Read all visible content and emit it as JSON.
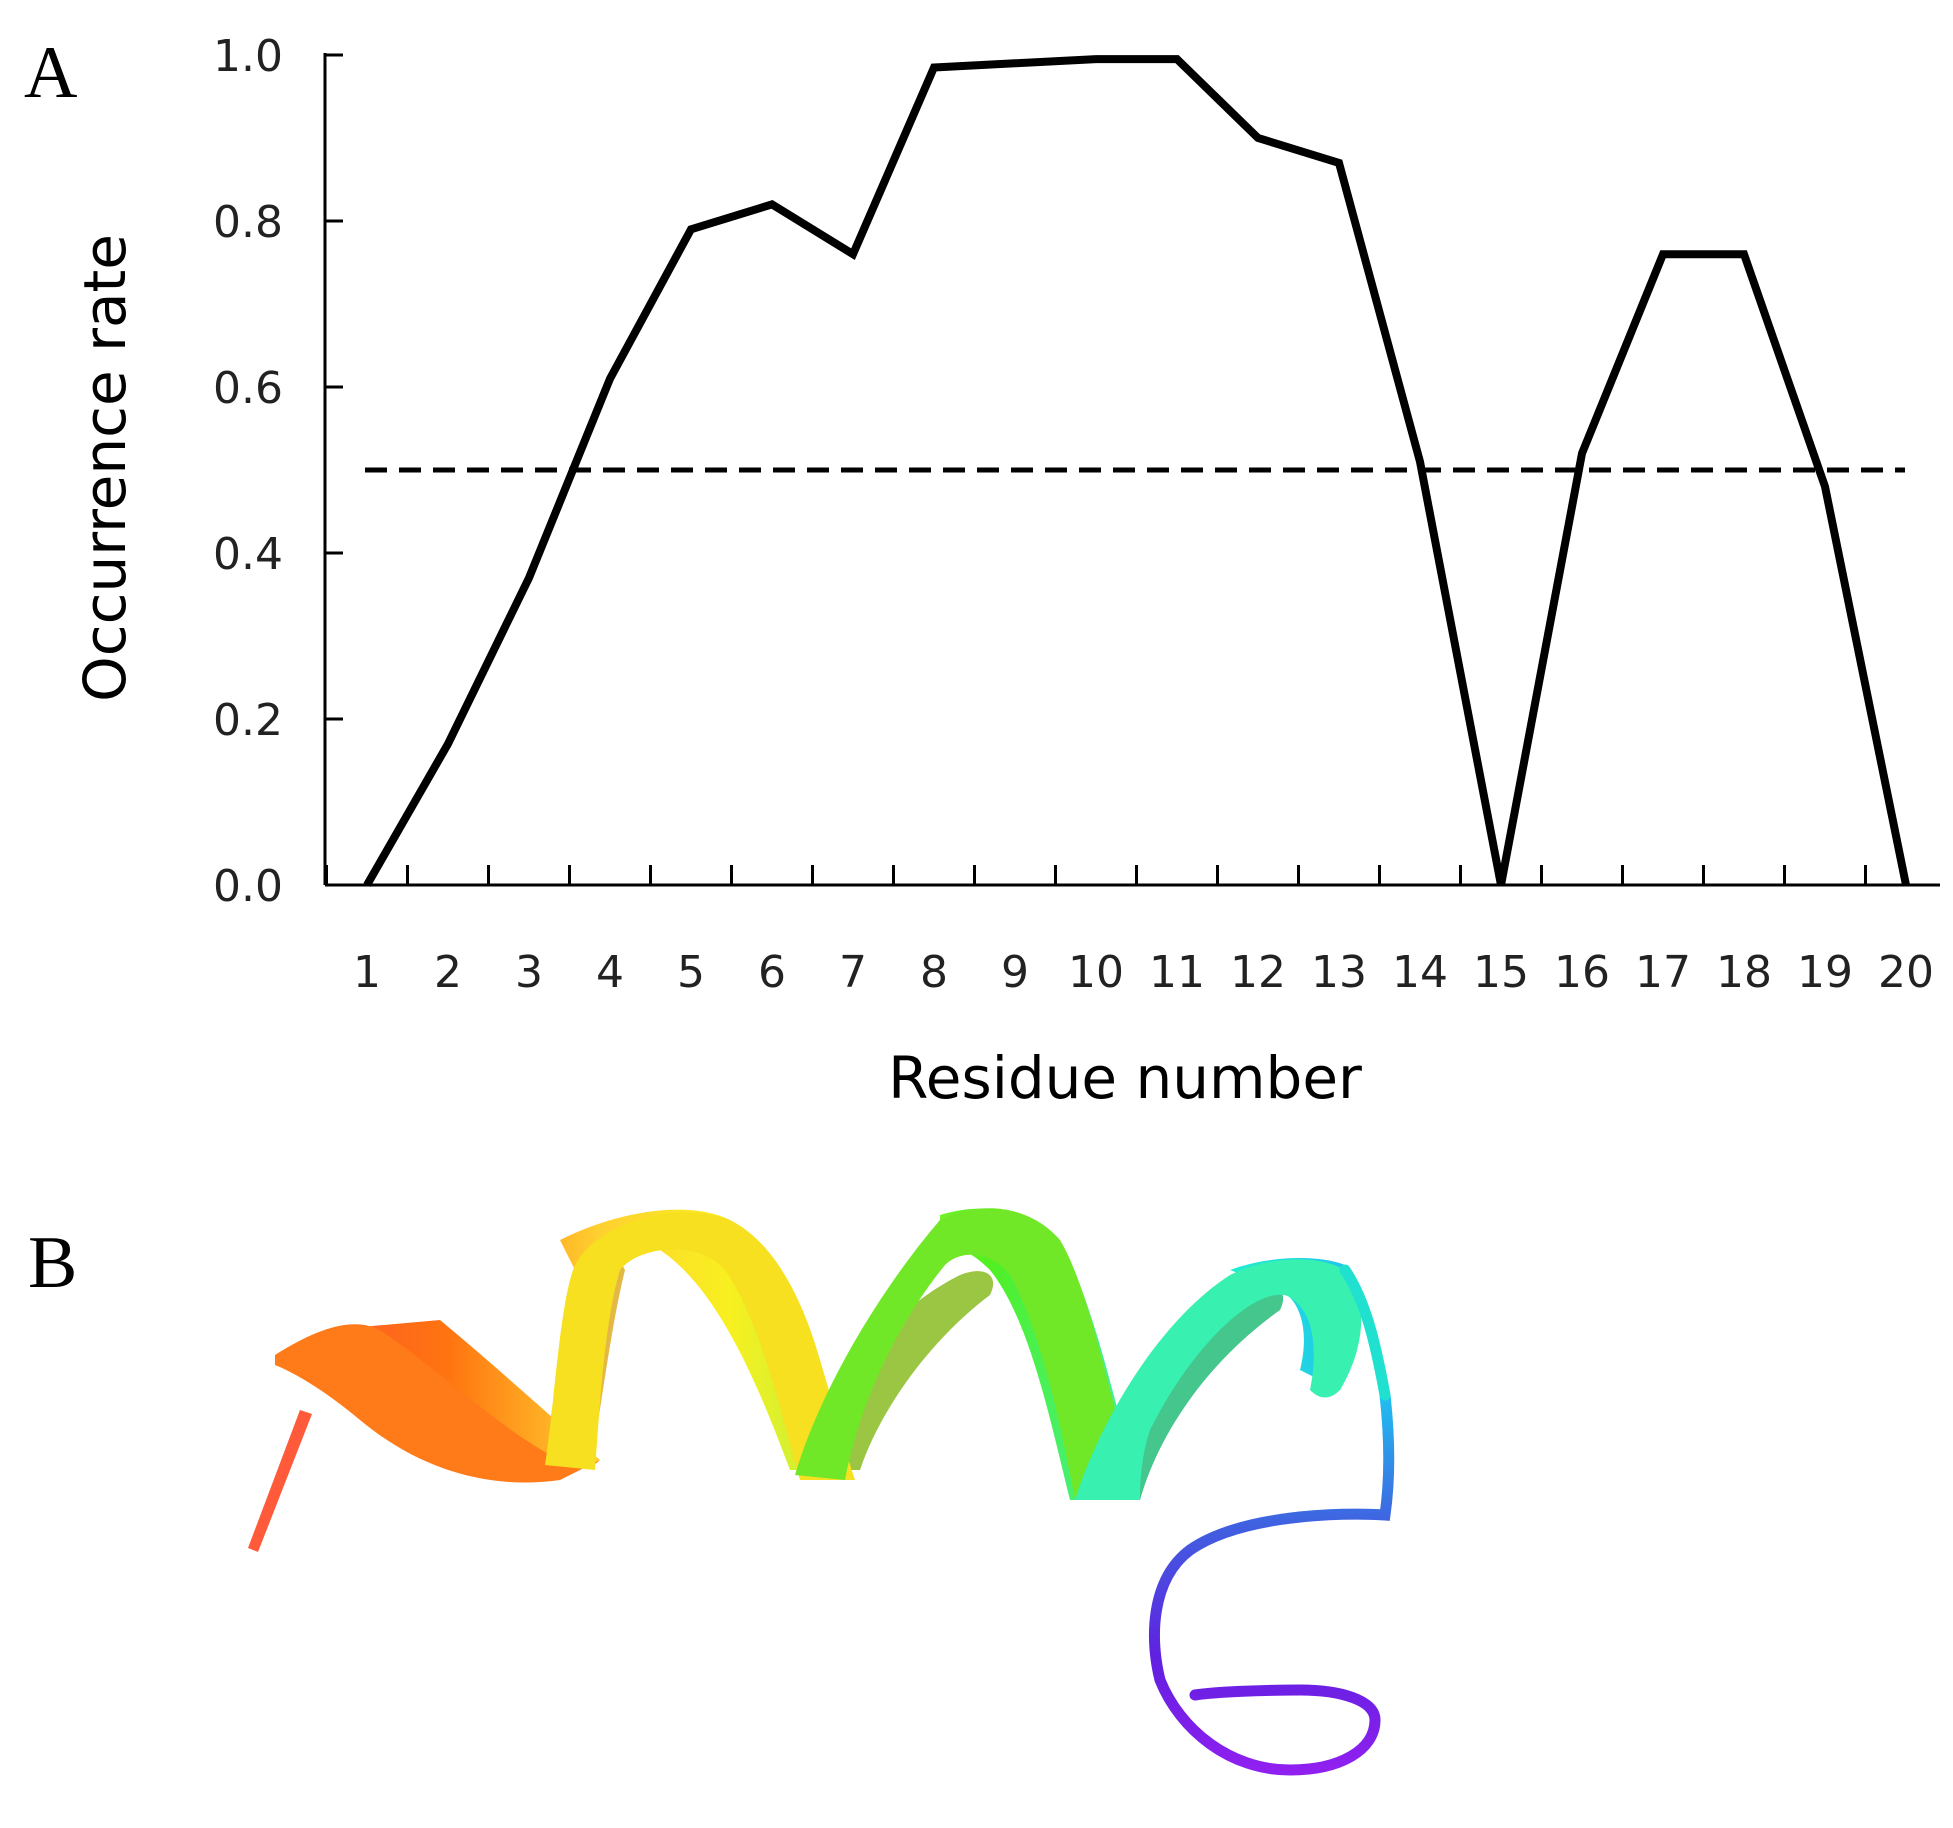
{
  "panels": {
    "a": "A",
    "b": "B"
  },
  "chart_data": {
    "type": "line",
    "xlabel": "Residue number",
    "ylabel": "Occurrence rate",
    "x": [
      1,
      2,
      3,
      4,
      5,
      6,
      7,
      8,
      9,
      10,
      11,
      12,
      13,
      14,
      15,
      16,
      17,
      18,
      19,
      20
    ],
    "x_tick_labels": [
      "1",
      "2",
      "3",
      "4",
      "5",
      "6",
      "7",
      "8",
      "9",
      "10",
      "11",
      "12",
      "13",
      "14",
      "15",
      "16",
      "17",
      "18",
      "19",
      "20"
    ],
    "y_tick_labels": [
      "0.0",
      "0.2",
      "0.4",
      "0.6",
      "0.8",
      "1.0"
    ],
    "ylim": [
      0,
      1.0
    ],
    "y_ticks": [
      0,
      0.2,
      0.4,
      0.6,
      0.8,
      1.0
    ],
    "series": [
      {
        "values": [
          0.0,
          0.17,
          0.37,
          0.61,
          0.79,
          0.82,
          0.76,
          0.985,
          0.99,
          0.995,
          0.995,
          0.9,
          0.87,
          0.51,
          0.0,
          0.52,
          0.76,
          0.76,
          0.48,
          0.0
        ],
        "color": "#000000",
        "style": "solid"
      }
    ],
    "reference_lines": [
      {
        "y": 0.5,
        "style": "dashed",
        "color": "#000000"
      }
    ],
    "grid": false,
    "legend": "none"
  },
  "ribbon_colors": [
    "#ff5030",
    "#ff7410",
    "#ffd030",
    "#f8f020",
    "#b0f040",
    "#50f020",
    "#40f0a0",
    "#20f0d0",
    "#20c0f0",
    "#4060e0",
    "#6020e0",
    "#9020f0"
  ]
}
